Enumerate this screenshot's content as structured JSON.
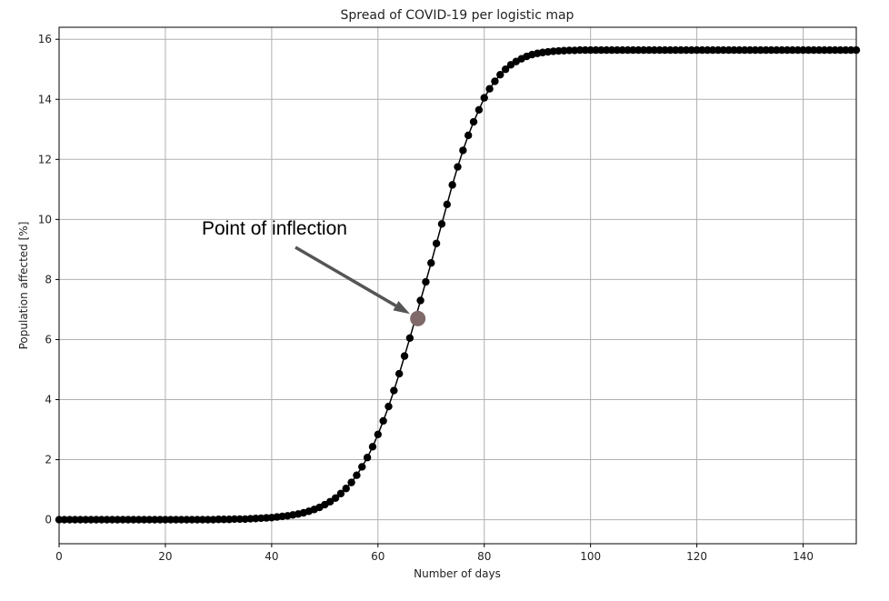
{
  "chart_data": {
    "type": "line",
    "title": "Spread of COVID-19 per logistic map",
    "xlabel": "Number of days",
    "ylabel": "Population affected [%]",
    "xlim": [
      0,
      150
    ],
    "ylim": [
      -0.8,
      16.4
    ],
    "xticks": [
      0,
      20,
      40,
      60,
      80,
      100,
      120,
      140
    ],
    "yticks": [
      0,
      2,
      4,
      6,
      8,
      10,
      12,
      14,
      16
    ],
    "grid": true,
    "series": [
      {
        "marker": "circle",
        "color": "#000000",
        "x": [
          0,
          1,
          2,
          3,
          4,
          5,
          6,
          7,
          8,
          9,
          10,
          11,
          12,
          13,
          14,
          15,
          16,
          17,
          18,
          19,
          20,
          21,
          22,
          23,
          24,
          25,
          26,
          27,
          28,
          29,
          30,
          31,
          32,
          33,
          34,
          35,
          36,
          37,
          38,
          39,
          40,
          41,
          42,
          43,
          44,
          45,
          46,
          47,
          48,
          49,
          50,
          51,
          52,
          53,
          54,
          55,
          56,
          57,
          58,
          59,
          60,
          61,
          62,
          63,
          64,
          65,
          66,
          67,
          68,
          69,
          70,
          71,
          72,
          73,
          74,
          75,
          76,
          77,
          78,
          79,
          80,
          81,
          82,
          83,
          84,
          85,
          86,
          87,
          88,
          89,
          90,
          91,
          92,
          93,
          94,
          95,
          96,
          97,
          98,
          99,
          100,
          101,
          102,
          103,
          104,
          105,
          106,
          107,
          108,
          109,
          110,
          111,
          112,
          113,
          114,
          115,
          116,
          117,
          118,
          119,
          120,
          121,
          122,
          123,
          124,
          125,
          126,
          127,
          128,
          129,
          130,
          131,
          132,
          133,
          134,
          135,
          136,
          137,
          138,
          139,
          140,
          141,
          142,
          143,
          144,
          145,
          146,
          147,
          148,
          149,
          150
        ],
        "y": [
          0,
          0,
          0,
          0,
          0,
          0,
          0,
          0,
          0,
          0,
          0,
          0,
          0,
          0,
          0,
          0,
          0,
          0,
          0,
          0,
          0,
          0,
          0,
          0,
          0,
          0,
          0,
          0,
          0,
          0,
          0.01,
          0.01,
          0.01,
          0.02,
          0.02,
          0.02,
          0.03,
          0.04,
          0.05,
          0.06,
          0.07,
          0.09,
          0.11,
          0.13,
          0.16,
          0.19,
          0.23,
          0.28,
          0.34,
          0.41,
          0.5,
          0.6,
          0.72,
          0.87,
          1.04,
          1.24,
          1.48,
          1.76,
          2.07,
          2.43,
          2.84,
          3.29,
          3.77,
          4.3,
          4.86,
          5.45,
          6.05,
          6.67,
          7.3,
          7.92,
          8.55,
          9.2,
          9.85,
          10.5,
          11.15,
          11.75,
          12.3,
          12.8,
          13.25,
          13.65,
          14.05,
          14.35,
          14.6,
          14.82,
          15.0,
          15.15,
          15.26,
          15.35,
          15.43,
          15.49,
          15.53,
          15.56,
          15.58,
          15.6,
          15.61,
          15.62,
          15.63,
          15.63,
          15.64,
          15.64,
          15.64,
          15.64,
          15.64,
          15.64,
          15.64,
          15.64,
          15.64,
          15.64,
          15.64,
          15.64,
          15.64,
          15.64,
          15.64,
          15.64,
          15.64,
          15.64,
          15.64,
          15.64,
          15.64,
          15.64,
          15.64,
          15.64,
          15.64,
          15.64,
          15.64,
          15.64,
          15.64,
          15.64,
          15.64,
          15.64,
          15.64,
          15.64,
          15.64,
          15.64,
          15.64,
          15.64,
          15.64,
          15.64,
          15.64,
          15.64,
          15.64,
          15.64,
          15.64,
          15.64,
          15.64,
          15.64,
          15.64,
          15.64,
          15.64,
          15.64,
          15.64
        ]
      }
    ],
    "annotation": {
      "text": "Point of inflection",
      "point": [
        67.5,
        6.7
      ],
      "point_color": "#7f6969",
      "arrow_color": "#555555"
    }
  }
}
